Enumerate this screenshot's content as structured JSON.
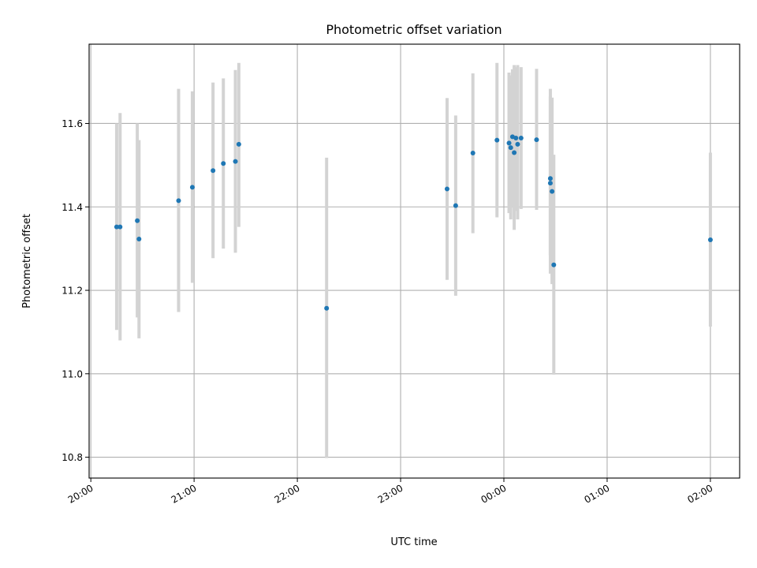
{
  "chart_data": {
    "type": "scatter",
    "title": "Photometric offset variation",
    "xlabel": "UTC time",
    "ylabel": "Photometric offset",
    "x_tick_labels": [
      "20:00",
      "21:00",
      "22:00",
      "23:00",
      "00:00",
      "01:00",
      "02:00"
    ],
    "y_tick_labels": [
      "10.8",
      "11.0",
      "11.2",
      "11.4",
      "11.6"
    ],
    "y_ticks": [
      10.8,
      11.0,
      11.2,
      11.4,
      11.6
    ],
    "xlim": [
      "19:59",
      "02:17"
    ],
    "ylim": [
      10.75,
      11.79
    ],
    "grid": true,
    "colors": {
      "points": "#1f77b4",
      "error_bars": "#d3d3d3",
      "grid": "#b0b0b0"
    },
    "series": [
      {
        "points": [
          {
            "x": "20:15",
            "y": 11.352,
            "y_low": 11.105,
            "y_high": 11.6
          },
          {
            "x": "20:17",
            "y": 11.352,
            "y_low": 11.08,
            "y_high": 11.625
          },
          {
            "x": "20:27",
            "y": 11.367,
            "y_low": 11.135,
            "y_high": 11.6
          },
          {
            "x": "20:28",
            "y": 11.323,
            "y_low": 11.085,
            "y_high": 11.56
          },
          {
            "x": "20:51",
            "y": 11.415,
            "y_low": 11.148,
            "y_high": 11.683
          },
          {
            "x": "20:59",
            "y": 11.447,
            "y_low": 11.218,
            "y_high": 11.677
          },
          {
            "x": "21:11",
            "y": 11.487,
            "y_low": 11.277,
            "y_high": 11.698
          },
          {
            "x": "21:17",
            "y": 11.504,
            "y_low": 11.3,
            "y_high": 11.708
          },
          {
            "x": "21:24",
            "y": 11.509,
            "y_low": 11.29,
            "y_high": 11.728
          },
          {
            "x": "21:26",
            "y": 11.55,
            "y_low": 11.352,
            "y_high": 11.745
          },
          {
            "x": "22:17",
            "y": 11.157,
            "y_low": 10.798,
            "y_high": 11.518
          },
          {
            "x": "23:27",
            "y": 11.443,
            "y_low": 11.225,
            "y_high": 11.661
          },
          {
            "x": "23:32",
            "y": 11.403,
            "y_low": 11.187,
            "y_high": 11.619
          },
          {
            "x": "23:42",
            "y": 11.529,
            "y_low": 11.337,
            "y_high": 11.72
          },
          {
            "x": "23:56",
            "y": 11.56,
            "y_low": 11.375,
            "y_high": 11.745
          },
          {
            "x": "00:03",
            "y": 11.553,
            "y_low": 11.385,
            "y_high": 11.722
          },
          {
            "x": "00:04",
            "y": 11.542,
            "y_low": 11.37,
            "y_high": 11.715
          },
          {
            "x": "00:05",
            "y": 11.568,
            "y_low": 11.4,
            "y_high": 11.73
          },
          {
            "x": "00:06",
            "y": 11.53,
            "y_low": 11.345,
            "y_high": 11.74
          },
          {
            "x": "00:07",
            "y": 11.565,
            "y_low": 11.39,
            "y_high": 11.735
          },
          {
            "x": "00:08",
            "y": 11.55,
            "y_low": 11.37,
            "y_high": 11.74
          },
          {
            "x": "00:10",
            "y": 11.565,
            "y_low": 11.395,
            "y_high": 11.735
          },
          {
            "x": "00:19",
            "y": 11.561,
            "y_low": 11.393,
            "y_high": 11.731
          },
          {
            "x": "00:27",
            "y": 11.468,
            "y_low": 11.285,
            "y_high": 11.683
          },
          {
            "x": "00:27",
            "y": 11.457,
            "y_low": 11.24,
            "y_high": 11.665
          },
          {
            "x": "00:28",
            "y": 11.437,
            "y_low": 11.215,
            "y_high": 11.662
          },
          {
            "x": "00:29",
            "y": 11.261,
            "y_low": 10.998,
            "y_high": 11.525
          },
          {
            "x": "02:00",
            "y": 11.321,
            "y_low": 11.113,
            "y_high": 11.53
          }
        ]
      }
    ]
  }
}
